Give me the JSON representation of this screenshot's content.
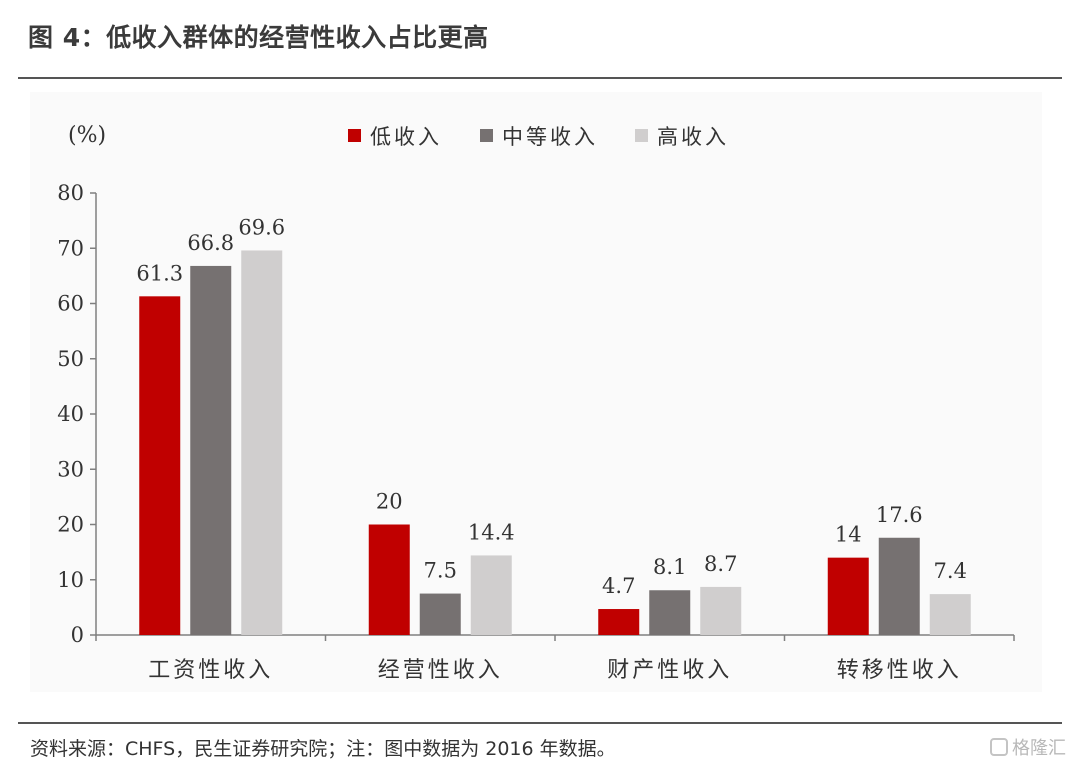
{
  "header": {
    "title": "图 4：低收入群体的经营性收入占比更高"
  },
  "footer": {
    "source": "资料来源：CHFS，民生证券研究院；注：图中数据为 2016 年数据。",
    "watermark": "格隆汇"
  },
  "colors": {
    "low": "#C00000",
    "mid": "#767171",
    "high": "#D0CECE",
    "axis": "#7f7f7f",
    "text": "#333333"
  },
  "chart_data": {
    "type": "bar",
    "title": "",
    "xlabel": "",
    "ylabel": "",
    "unit_label": "(%)",
    "categories": [
      "工资性收入",
      "经营性收入",
      "财产性收入",
      "转移性收入"
    ],
    "series": [
      {
        "name": "低收入",
        "values": [
          61.3,
          20,
          4.7,
          14
        ],
        "labels": [
          "61.3",
          "20",
          "4.7",
          "14"
        ]
      },
      {
        "name": "中等收入",
        "values": [
          66.8,
          7.5,
          8.1,
          17.6
        ],
        "labels": [
          "66.8",
          "7.5",
          "8.1",
          "17.6"
        ]
      },
      {
        "name": "高收入",
        "values": [
          69.6,
          14.4,
          8.7,
          7.4
        ],
        "labels": [
          "69.6",
          "14.4",
          "8.7",
          "7.4"
        ]
      }
    ],
    "ylim": [
      0,
      80
    ],
    "yticks": [
      "0",
      "10",
      "20",
      "30",
      "40",
      "50",
      "60",
      "70",
      "80"
    ],
    "grid": false,
    "legend_position": "top-center"
  }
}
